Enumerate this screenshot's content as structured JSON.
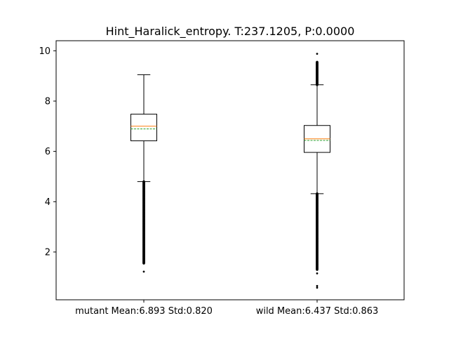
{
  "chart_data": {
    "type": "box",
    "title": "Hint_Haralick_entropy. T:237.1205, P:0.0000",
    "xlabel": "",
    "ylabel": "",
    "categories": [
      "mutant Mean:6.893 Std:0.820",
      "wild Mean:6.437 Std:0.863"
    ],
    "ylim": [
      0.1,
      10.4
    ],
    "yticks": [
      2,
      4,
      6,
      8,
      10
    ],
    "grid": false,
    "legend": "none",
    "boxes": [
      {
        "category": "mutant Mean:6.893 Std:0.820",
        "whisker_low": 4.8,
        "q1": 6.42,
        "median": 7.0,
        "mean": 6.893,
        "q3": 7.48,
        "whisker_high": 9.05,
        "outlier_range_low": [
          1.55,
          4.8
        ],
        "outliers_extra": [
          1.22
        ]
      },
      {
        "category": "wild Mean:6.437 Std:0.863",
        "whisker_low": 4.32,
        "q1": 5.96,
        "median": 6.5,
        "mean": 6.437,
        "q3": 7.03,
        "whisker_high": 8.65,
        "outlier_range_low": [
          1.3,
          4.32
        ],
        "outlier_range_high": [
          8.65,
          9.55
        ],
        "outliers_extra": [
          0.65,
          0.58,
          9.88,
          1.15
        ]
      }
    ],
    "colors": {
      "box": "#000000",
      "median": "#ff7f0e",
      "mean": "#2ca02c",
      "outlier": "#000000"
    }
  }
}
